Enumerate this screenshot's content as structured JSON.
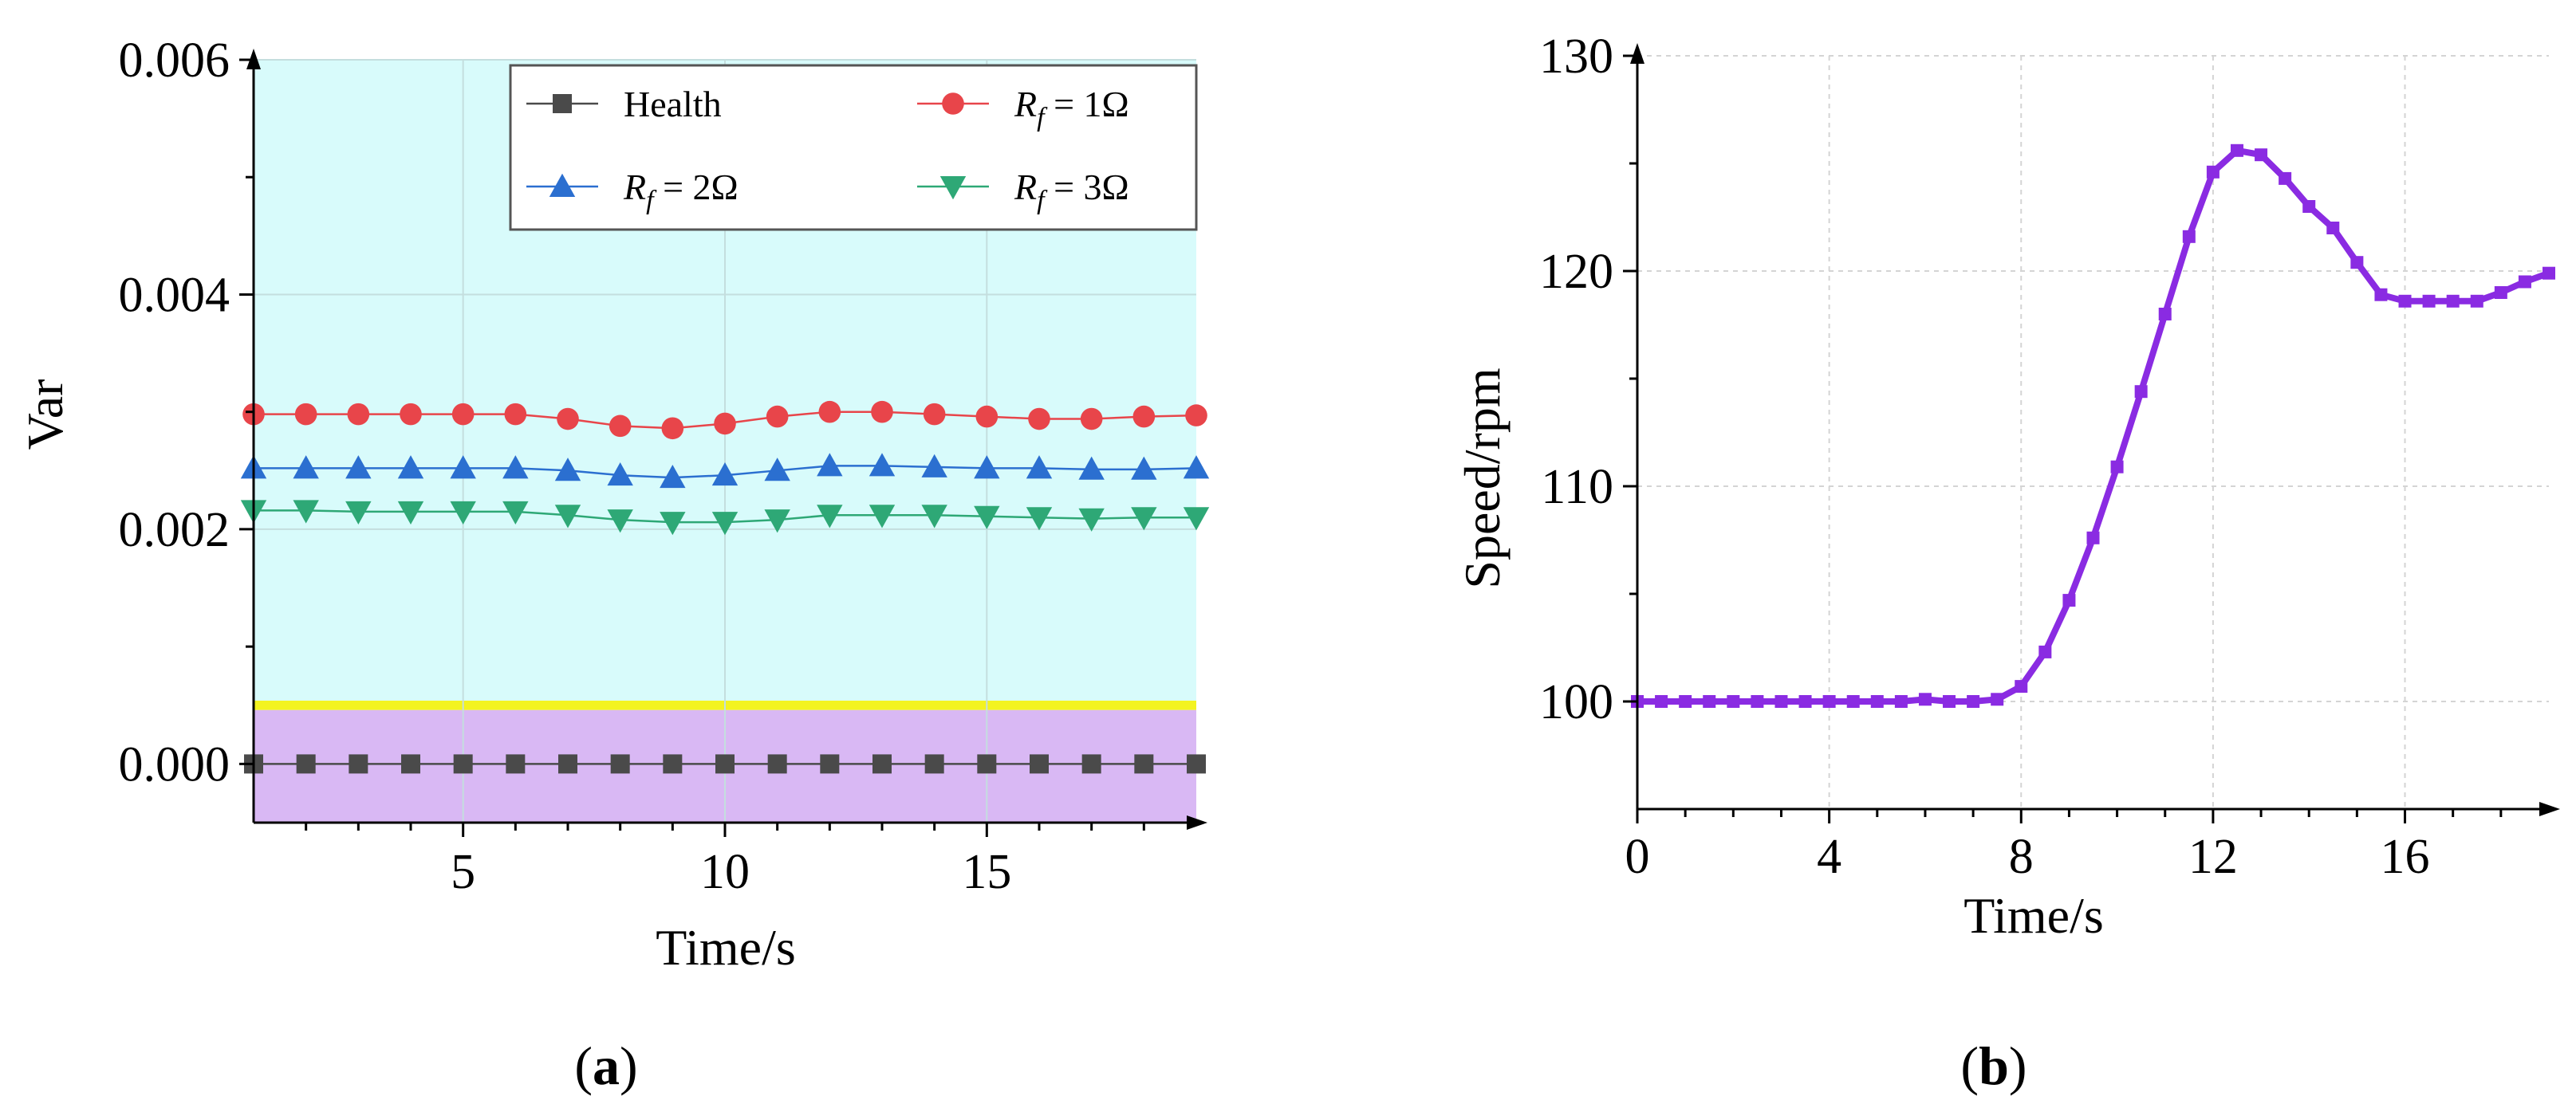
{
  "chart_data": [
    {
      "type": "line",
      "panel_label": "a",
      "xlabel": "Time/s",
      "ylabel": "Var",
      "xlim": [
        1,
        19
      ],
      "ylim": [
        -0.0005,
        0.006
      ],
      "x_ticks": [
        5,
        10,
        15
      ],
      "y_ticks": [
        "0.000",
        "0.002",
        "0.004",
        "0.006"
      ],
      "y_tick_values": [
        0,
        0.002,
        0.004,
        0.006
      ],
      "bands": [
        {
          "name": "normal-band",
          "from": -0.0005,
          "to": 0.00046,
          "color": "#d9b8f4"
        },
        {
          "name": "threshold-line",
          "from": 0.00046,
          "to": 0.00054,
          "color": "#f3f320"
        },
        {
          "name": "fault-band",
          "from": 0.00054,
          "to": 0.006,
          "color": "#d8fbfb"
        }
      ],
      "legend": {
        "placement": "top-right"
      },
      "x": [
        1,
        2,
        3,
        4,
        5,
        6,
        7,
        8,
        9,
        10,
        11,
        12,
        13,
        14,
        15,
        16,
        17,
        18,
        19
      ],
      "series": [
        {
          "name": "Health",
          "legend_parts": [
            "Health"
          ],
          "color": "#4a4a4a",
          "marker": "square",
          "values": [
            0,
            0,
            0,
            0,
            0,
            0,
            0,
            0,
            0,
            0,
            0,
            0,
            0,
            0,
            0,
            0,
            0,
            0,
            0
          ]
        },
        {
          "name": "Rf = 1Ω",
          "legend_parts": [
            "R",
            "f",
            " = 1Ω"
          ],
          "color": "#e8454a",
          "marker": "circle",
          "values": [
            0.00298,
            0.00298,
            0.00298,
            0.00298,
            0.00298,
            0.00298,
            0.00294,
            0.00288,
            0.00286,
            0.0029,
            0.00296,
            0.003,
            0.003,
            0.00298,
            0.00296,
            0.00294,
            0.00294,
            0.00296,
            0.00297
          ]
        },
        {
          "name": "Rf = 2Ω",
          "legend_parts": [
            "R",
            "f",
            " = 2Ω"
          ],
          "color": "#2b6fd0",
          "marker": "triangle-up",
          "values": [
            0.00252,
            0.00252,
            0.00252,
            0.00252,
            0.00252,
            0.00252,
            0.0025,
            0.00246,
            0.00244,
            0.00246,
            0.0025,
            0.00254,
            0.00254,
            0.00253,
            0.00252,
            0.00252,
            0.00251,
            0.00251,
            0.00252
          ]
        },
        {
          "name": "Rf = 3Ω",
          "legend_parts": [
            "R",
            "f",
            " = 3Ω"
          ],
          "color": "#2ea876",
          "marker": "triangle-down",
          "values": [
            0.00216,
            0.00216,
            0.00215,
            0.00215,
            0.00215,
            0.00215,
            0.00212,
            0.00208,
            0.00206,
            0.00206,
            0.00208,
            0.00212,
            0.00212,
            0.00212,
            0.00211,
            0.0021,
            0.00209,
            0.0021,
            0.0021
          ]
        }
      ]
    },
    {
      "type": "line",
      "panel_label": "b",
      "xlabel": "Time/s",
      "ylabel": "Speed/rpm",
      "xlim": [
        0,
        19
      ],
      "ylim": [
        95,
        130
      ],
      "x_ticks": [
        0,
        4,
        8,
        12,
        16
      ],
      "y_ticks": [
        "100",
        "110",
        "120",
        "130"
      ],
      "y_tick_values": [
        100,
        110,
        120,
        130
      ],
      "series": [
        {
          "name": "Speed",
          "color": "#8a2be2",
          "marker": "square",
          "x": [
            0,
            0.5,
            1,
            1.5,
            2,
            2.5,
            3,
            3.5,
            4,
            4.5,
            5,
            5.5,
            6,
            6.5,
            7,
            7.5,
            8,
            8.5,
            9,
            9.5,
            10,
            10.5,
            11,
            11.5,
            12,
            12.5,
            13,
            13.5,
            14,
            14.5,
            15,
            15.5,
            16,
            16.5,
            17,
            17.5,
            18,
            18.5,
            19
          ],
          "values": [
            100,
            100,
            100,
            100,
            100,
            100,
            100,
            100,
            100,
            100,
            100,
            100,
            100.1,
            100,
            100,
            100.1,
            100.7,
            102.3,
            104.7,
            107.6,
            110.9,
            114.4,
            118,
            121.6,
            124.6,
            125.6,
            125.4,
            124.3,
            123,
            122,
            120.4,
            118.9,
            118.6,
            118.6,
            118.6,
            118.6,
            119,
            119.5,
            119.9
          ]
        }
      ]
    }
  ]
}
